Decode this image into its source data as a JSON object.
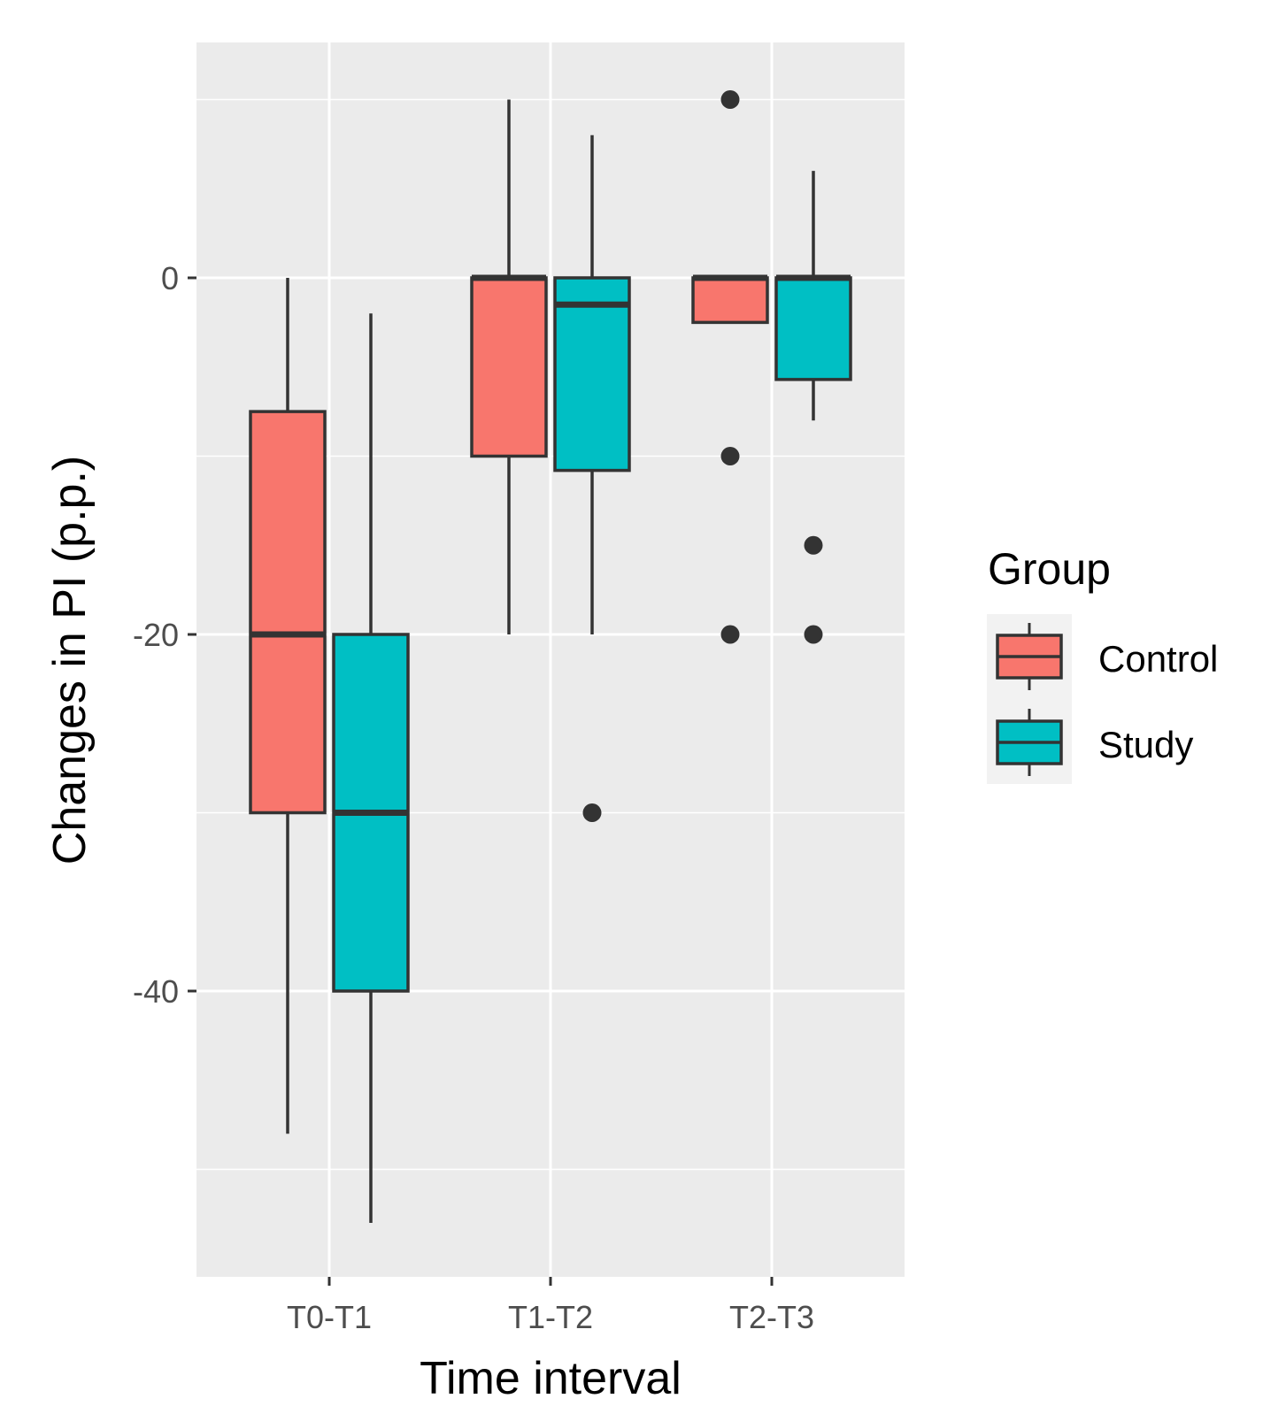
{
  "chart_data": {
    "type": "boxplot",
    "title": "",
    "xlabel": "Time interval",
    "ylabel": "Changes in PI (p.p.)",
    "ylim": [
      -56,
      13
    ],
    "y_ticks": [
      0,
      -20,
      -40
    ],
    "y_tick_labels": [
      "0",
      "-20",
      "-40"
    ],
    "y_minor_gridlines": [
      10,
      -10,
      -30,
      -50
    ],
    "categories": [
      "T0-T1",
      "T1-T2",
      "T2-T3"
    ],
    "legend": {
      "title": "Group",
      "position": "right"
    },
    "series": [
      {
        "name": "Control",
        "color": "#F8766D",
        "boxes": [
          {
            "category": "T0-T1",
            "lower_whisker": -48,
            "q1": -30,
            "median": -20,
            "q3": -7.5,
            "upper_whisker": 0,
            "outliers": []
          },
          {
            "category": "T1-T2",
            "lower_whisker": -20,
            "q1": -10,
            "median": 0,
            "q3": 0,
            "upper_whisker": 10,
            "outliers": []
          },
          {
            "category": "T2-T3",
            "lower_whisker": -2.5,
            "q1": -2.5,
            "median": 0,
            "q3": 0,
            "upper_whisker": 0,
            "outliers": [
              10,
              -10,
              -20
            ]
          }
        ]
      },
      {
        "name": "Study",
        "color": "#00BFC4",
        "boxes": [
          {
            "category": "T0-T1",
            "lower_whisker": -53,
            "q1": -40,
            "median": -30,
            "q3": -20,
            "upper_whisker": -2,
            "outliers": []
          },
          {
            "category": "T1-T2",
            "lower_whisker": -20,
            "q1": -10.8,
            "median": -1.5,
            "q3": 0,
            "upper_whisker": 8,
            "outliers": [
              -30
            ]
          },
          {
            "category": "T2-T3",
            "lower_whisker": -8,
            "q1": -5.7,
            "median": 0,
            "q3": 0,
            "upper_whisker": 6,
            "outliers": [
              -15,
              -20
            ]
          }
        ]
      }
    ],
    "colors": {
      "panel_background": "#EBEBEB",
      "grid": "#FFFFFF",
      "outline": "#333333"
    }
  }
}
